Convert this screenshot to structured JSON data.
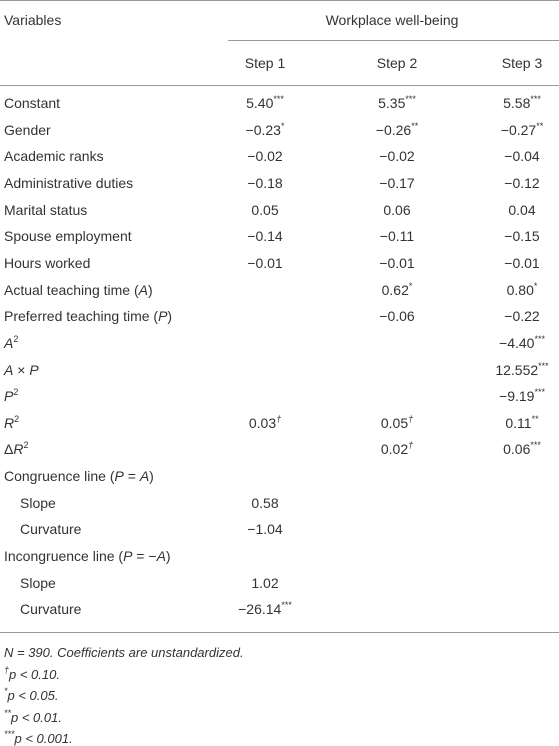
{
  "header": {
    "variables": "Variables",
    "group": "Workplace well-being",
    "steps": [
      "Step 1",
      "Step 2",
      "Step 3"
    ]
  },
  "table": {
    "rows": [
      {
        "label": [
          {
            "t": "Constant"
          }
        ],
        "cells": [
          {
            "v": "5.40",
            "sig": "***"
          },
          {
            "v": "5.35",
            "sig": "***"
          },
          {
            "v": "5.58",
            "sig": "***"
          }
        ]
      },
      {
        "label": [
          {
            "t": "Gender"
          }
        ],
        "cells": [
          {
            "v": "−0.23",
            "sig": "*"
          },
          {
            "v": "−0.26",
            "sig": "**"
          },
          {
            "v": "−0.27",
            "sig": "**"
          }
        ]
      },
      {
        "label": [
          {
            "t": "Academic ranks"
          }
        ],
        "cells": [
          {
            "v": "−0.02"
          },
          {
            "v": "−0.02"
          },
          {
            "v": "−0.04"
          }
        ]
      },
      {
        "label": [
          {
            "t": "Administrative duties"
          }
        ],
        "cells": [
          {
            "v": "−0.18"
          },
          {
            "v": "−0.17"
          },
          {
            "v": "−0.12"
          }
        ]
      },
      {
        "label": [
          {
            "t": "Marital status"
          }
        ],
        "cells": [
          {
            "v": "0.05"
          },
          {
            "v": "0.06"
          },
          {
            "v": "0.04"
          }
        ]
      },
      {
        "label": [
          {
            "t": "Spouse employment"
          }
        ],
        "cells": [
          {
            "v": "−0.14"
          },
          {
            "v": "−0.11"
          },
          {
            "v": "−0.15"
          }
        ]
      },
      {
        "label": [
          {
            "t": "Hours worked"
          }
        ],
        "cells": [
          {
            "v": "−0.01"
          },
          {
            "v": "−0.01"
          },
          {
            "v": "−0.01"
          }
        ]
      },
      {
        "label": [
          {
            "t": "Actual teaching time ("
          },
          {
            "i": "A"
          },
          {
            "t": ")"
          }
        ],
        "cells": [
          null,
          {
            "v": "0.62",
            "sig": "*"
          },
          {
            "v": "0.80",
            "sig": "*"
          }
        ]
      },
      {
        "label": [
          {
            "t": "Preferred teaching time ("
          },
          {
            "i": "P"
          },
          {
            "t": ")"
          }
        ],
        "cells": [
          null,
          {
            "v": "−0.06"
          },
          {
            "v": "−0.22"
          }
        ]
      },
      {
        "label": [
          {
            "i": "A"
          },
          {
            "sup": "2"
          }
        ],
        "cells": [
          null,
          null,
          {
            "v": "−4.40",
            "sig": "***"
          }
        ]
      },
      {
        "label": [
          {
            "i": "A"
          },
          {
            "t": " × "
          },
          {
            "i": "P"
          }
        ],
        "cells": [
          null,
          null,
          {
            "v": "12.552",
            "sig": "***"
          }
        ]
      },
      {
        "label": [
          {
            "i": "P"
          },
          {
            "sup": "2"
          }
        ],
        "cells": [
          null,
          null,
          {
            "v": "−9.19",
            "sig": "***"
          }
        ]
      },
      {
        "label": [
          {
            "i": "R"
          },
          {
            "sup": "2"
          }
        ],
        "cells": [
          {
            "v": "0.03",
            "sig": "†"
          },
          {
            "v": "0.05",
            "sig": "†"
          },
          {
            "v": "0.11",
            "sig": "**"
          }
        ]
      },
      {
        "label": [
          {
            "t": "Δ"
          },
          {
            "i": "R"
          },
          {
            "sup": "2"
          }
        ],
        "cells": [
          null,
          {
            "v": "0.02",
            "sig": "†"
          },
          {
            "v": "0.06",
            "sig": "***"
          }
        ]
      },
      {
        "label": [
          {
            "t": "Congruence line ("
          },
          {
            "i": "P"
          },
          {
            "t": " = "
          },
          {
            "i": "A"
          },
          {
            "t": ")"
          }
        ],
        "cells": [
          null,
          null,
          null
        ]
      },
      {
        "label": [
          {
            "t": "Slope"
          }
        ],
        "indent": true,
        "cells": [
          {
            "v": "0.58"
          },
          null,
          null
        ]
      },
      {
        "label": [
          {
            "t": "Curvature"
          }
        ],
        "indent": true,
        "cells": [
          {
            "v": "−1.04"
          },
          null,
          null
        ]
      },
      {
        "label": [
          {
            "t": "Incongruence line ("
          },
          {
            "i": "P"
          },
          {
            "t": " = −"
          },
          {
            "i": "A"
          },
          {
            "t": ")"
          }
        ],
        "cells": [
          null,
          null,
          null
        ]
      },
      {
        "label": [
          {
            "t": "Slope"
          }
        ],
        "indent": true,
        "cells": [
          {
            "v": "1.02"
          },
          null,
          null
        ]
      },
      {
        "label": [
          {
            "t": "Curvature"
          }
        ],
        "indent": true,
        "cells": [
          {
            "v": "−26.14",
            "sig": "***"
          },
          null,
          null
        ]
      }
    ]
  },
  "footnotes": [
    [
      {
        "t": "N = 390. Coefficients are unstandardized."
      }
    ],
    [
      {
        "sup": "†"
      },
      {
        "t": "p < 0.10."
      }
    ],
    [
      {
        "sup": "*"
      },
      {
        "t": "p < 0.05."
      }
    ],
    [
      {
        "sup": "**"
      },
      {
        "t": "p < 0.01."
      }
    ],
    [
      {
        "sup": "***"
      },
      {
        "t": "p < 0.001."
      }
    ]
  ]
}
